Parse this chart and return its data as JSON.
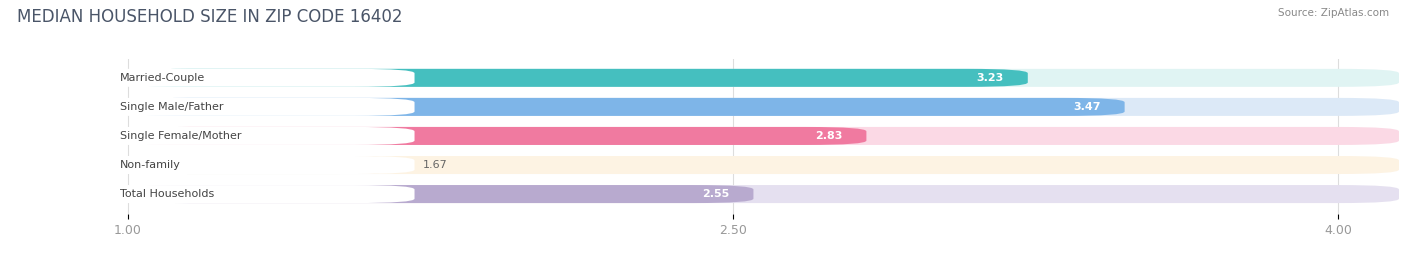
{
  "title": "MEDIAN HOUSEHOLD SIZE IN ZIP CODE 16402",
  "source": "Source: ZipAtlas.com",
  "categories": [
    "Married-Couple",
    "Single Male/Father",
    "Single Female/Mother",
    "Non-family",
    "Total Households"
  ],
  "values": [
    3.23,
    3.47,
    2.83,
    1.67,
    2.55
  ],
  "bar_colors": [
    "#45BFBF",
    "#7EB5E8",
    "#F07AA0",
    "#F5CFA0",
    "#B8AACF"
  ],
  "bar_bg_colors": [
    "#E0F4F3",
    "#DCE9F7",
    "#FBD9E5",
    "#FDF3E3",
    "#E5E0F0"
  ],
  "xlim_start": 0.7,
  "xlim_end": 4.15,
  "xmin": 1.0,
  "xticks": [
    1.0,
    2.5,
    4.0
  ],
  "xlabel_fontsize": 9,
  "title_fontsize": 12,
  "label_fontsize": 8,
  "value_fontsize": 8,
  "background_color": "#FFFFFF",
  "bar_height": 0.62,
  "value_threshold": 2.3,
  "value_color_inside": "#FFFFFF",
  "value_color_outside": "#666666",
  "label_box_color": "#FFFFFF",
  "grid_color": "#DDDDDD",
  "title_color": "#4A5568",
  "source_color": "#888888",
  "tick_color": "#999999"
}
